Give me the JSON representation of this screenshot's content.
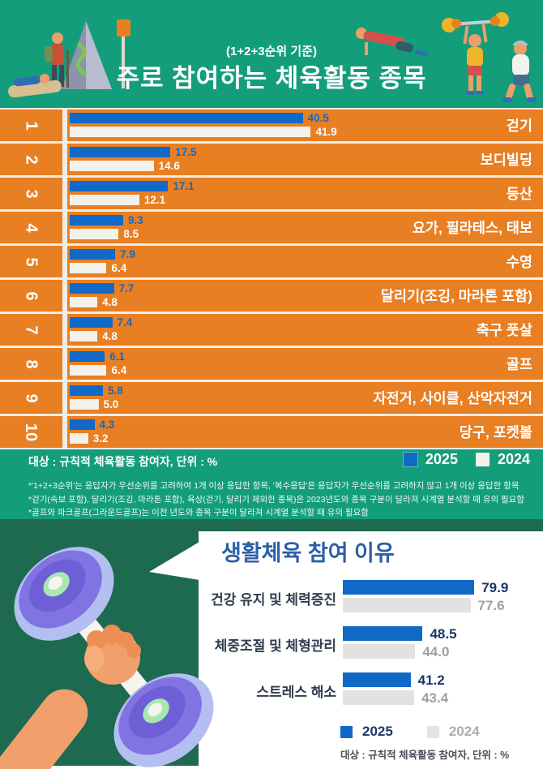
{
  "colors": {
    "header_green": "#149D7B",
    "dark_green": "#1D6A51",
    "row_orange": "#E87F23",
    "cream_background": "#F0EDE4",
    "bar_blue_2025": "#1169C7",
    "bar_white_2024": "#F4F1EA",
    "bar_gray_2024": "#E3E2E0",
    "navy_title": "#2B5FA7",
    "navy_value": "#1C3667",
    "gray_value": "#9FA0A2"
  },
  "chart_data": [
    {
      "type": "bar",
      "orientation": "horizontal",
      "subtitle": "(1+2+3순위 기준)",
      "title": "주로 참여하는 체육활동 종목",
      "caption": "대상 : 규칙적 체육활동 참여자, 단위 : %",
      "unit": "%",
      "legend": [
        "2025",
        "2024"
      ],
      "legend_position": "top-right-of-notes",
      "xlim": [
        0,
        45
      ],
      "grid": false,
      "ranks": [
        "1",
        "2",
        "3",
        "4",
        "5",
        "6",
        "7",
        "8",
        "9",
        "10"
      ],
      "categories": [
        "걷기",
        "보디빌딩",
        "등산",
        "요가, 필라테스, 태보",
        "수영",
        "달리기(조깅, 마라톤 포함)",
        "축구 풋살",
        "골프",
        "자전거, 사이클, 산악자전거",
        "당구, 포켓볼"
      ],
      "series": [
        {
          "name": "2025",
          "values": [
            40.5,
            17.5,
            17.1,
            9.3,
            7.9,
            7.7,
            7.4,
            6.1,
            5.8,
            4.3
          ]
        },
        {
          "name": "2024",
          "values": [
            41.9,
            14.6,
            12.1,
            8.5,
            6.4,
            4.8,
            4.8,
            6.4,
            5.0,
            3.2
          ]
        }
      ],
      "footnotes": [
        "*'1+2+3순위'는 응답자가 우선순위를 고려하여 1개 이상 응답한 항목, '복수응답'은 응답자가 우선순위를 고려하지 않고 1개 이상 응답한 항목",
        "*걷기(속보 포함), 달리기(조깅, 마라톤 포함), 육상(걷기, 달리기 제외한 종목)은 2023년도와 종목 구분이 달라져 시계열 분석할 때 유의 필요함",
        "*골프와 파크골프(그라운드골프)는 이전 년도와 종목 구분이 달라져 시계열 분석할 때 유의 필요함"
      ]
    },
    {
      "type": "bar",
      "orientation": "horizontal",
      "title": "생활체육 참여 이유",
      "caption": "대상 : 규칙적 체육활동 참여자, 단위 : %",
      "unit": "%",
      "legend": [
        "2025",
        "2024"
      ],
      "legend_position": "bottom",
      "xlim": [
        0,
        85
      ],
      "grid": false,
      "categories": [
        "건강 유지 및 체력증진",
        "체중조절 및 체형관리",
        "스트레스 해소"
      ],
      "series": [
        {
          "name": "2025",
          "values": [
            79.9,
            48.5,
            41.2
          ]
        },
        {
          "name": "2024",
          "values": [
            77.6,
            44.0,
            43.4
          ]
        }
      ]
    }
  ]
}
